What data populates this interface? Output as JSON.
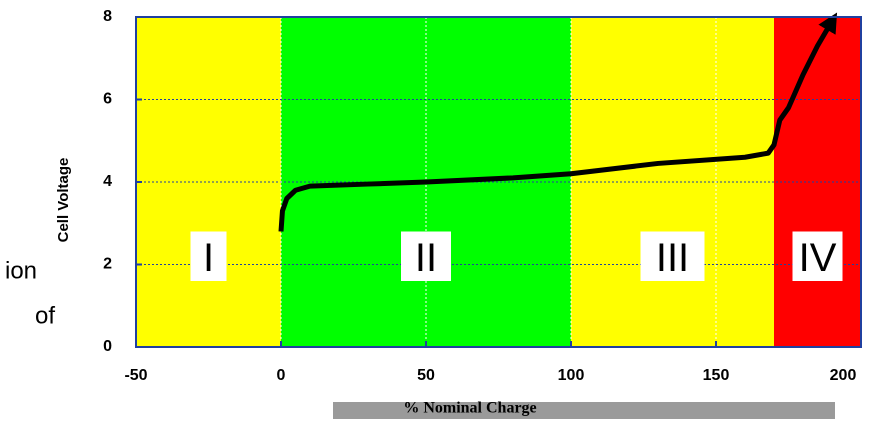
{
  "chart_data": {
    "type": "line",
    "x_label": "% Nominal Charge",
    "y_label": "Cell Voltage",
    "x": [
      0,
      0.5,
      2,
      5,
      10,
      30,
      50,
      80,
      100,
      130,
      160,
      168,
      170,
      172,
      175,
      180,
      185,
      190
    ],
    "values": [
      2.8,
      3.3,
      3.6,
      3.8,
      3.9,
      3.95,
      4.0,
      4.1,
      4.2,
      4.45,
      4.6,
      4.7,
      4.9,
      5.5,
      5.8,
      6.6,
      7.3,
      7.9
    ],
    "color": "#000000",
    "regions": [
      {
        "label": "I",
        "start": -50,
        "end": 0,
        "color": "#ffff00"
      },
      {
        "label": "II",
        "start": 0,
        "end": 100,
        "color": "#00ff00"
      },
      {
        "label": "III",
        "start": 100,
        "end": 170,
        "color": "#ffff00"
      },
      {
        "label": "IV",
        "start": 170,
        "end": 200,
        "color": "#ff0000"
      }
    ],
    "xlim": [
      -50,
      200
    ],
    "ylim": [
      0,
      8
    ],
    "xticks": [
      -50,
      0,
      50,
      100,
      150,
      200
    ],
    "yticks": [
      0,
      2,
      4,
      6,
      8
    ],
    "grid": true
  },
  "fragments": [
    "ion",
    "of"
  ]
}
